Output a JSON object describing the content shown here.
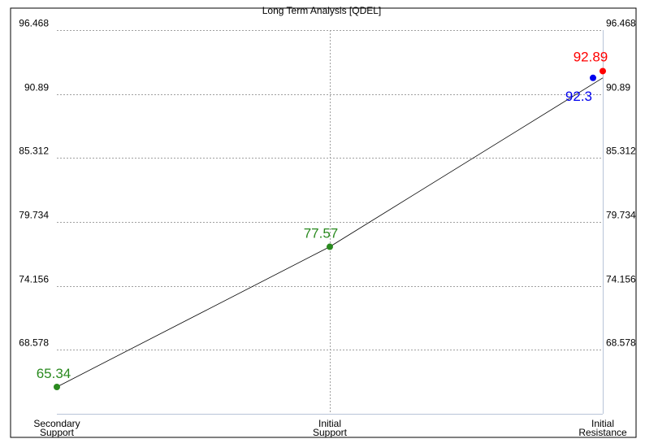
{
  "chart_data": {
    "type": "line",
    "title": "Long Term Analysis [QDEL]",
    "categories": [
      [
        "Secondary",
        "Support"
      ],
      [
        "Initial",
        "Support"
      ],
      [
        "Initial",
        "Resistance"
      ]
    ],
    "yticks": [
      "96.468",
      "90.89",
      "85.312",
      "79.734",
      "74.156",
      "68.578"
    ],
    "ylim": [
      63.0,
      96.468
    ],
    "series": [
      {
        "values": [
          65.34,
          77.57,
          92.3
        ]
      }
    ],
    "points": [
      {
        "x": 0,
        "y": 65.34,
        "label": "65.34",
        "color": "#2a8a1f"
      },
      {
        "x": 1,
        "y": 77.57,
        "label": "77.57",
        "color": "#2a8a1f"
      },
      {
        "x": 2,
        "y": 92.3,
        "label": "92.3",
        "color": "#0000ee"
      },
      {
        "x": 2,
        "y": 92.89,
        "label": "92.89",
        "color": "#ff0000"
      }
    ],
    "grid": true
  }
}
